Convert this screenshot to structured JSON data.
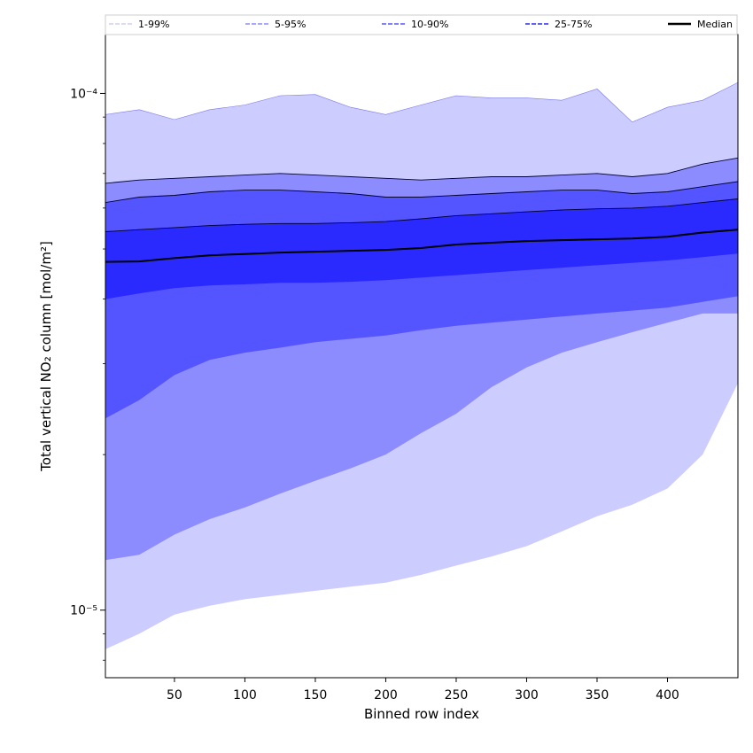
{
  "chart_data": {
    "type": "area",
    "title": "",
    "xlabel": "Binned row index",
    "ylabel": "Total vertical NO₂ column [mol/m²]",
    "xlim": [
      1,
      450
    ],
    "ylim": [
      7.4e-06,
      0.00013
    ],
    "yscale": "log",
    "grid": false,
    "legend_position": "top",
    "x_ticks": [
      50,
      100,
      150,
      200,
      250,
      300,
      350,
      400
    ],
    "x_tick_labels": [
      "50",
      "100",
      "150",
      "200",
      "250",
      "300",
      "350",
      "400"
    ],
    "y_ticks": [
      1e-05,
      0.0001
    ],
    "y_tick_labels": [
      "10⁻⁵",
      "10⁻⁴"
    ],
    "x": [
      1,
      25,
      50,
      75,
      100,
      125,
      150,
      175,
      200,
      225,
      250,
      275,
      300,
      325,
      350,
      375,
      400,
      425,
      450
    ],
    "series": [
      {
        "name": "1-99%",
        "color": "#ccccff",
        "line_color": "#7777ee",
        "lower": [
          8.4e-06,
          9e-06,
          9.8e-06,
          1.02e-05,
          1.05e-05,
          1.07e-05,
          1.09e-05,
          1.11e-05,
          1.13e-05,
          1.17e-05,
          1.22e-05,
          1.27e-05,
          1.33e-05,
          1.42e-05,
          1.52e-05,
          1.6e-05,
          1.72e-05,
          2e-05,
          2.75e-05
        ],
        "upper": [
          9.1e-05,
          9.3e-05,
          8.9e-05,
          9.3e-05,
          9.5e-05,
          9.9e-05,
          9.95e-05,
          9.4e-05,
          9.1e-05,
          9.5e-05,
          9.9e-05,
          9.8e-05,
          9.8e-05,
          9.7e-05,
          0.000102,
          8.8e-05,
          9.4e-05,
          9.7e-05,
          0.000105
        ]
      },
      {
        "name": "5-95%",
        "color": "#8c8cff",
        "line_color": "#000033",
        "lower": [
          1.25e-05,
          1.28e-05,
          1.4e-05,
          1.5e-05,
          1.58e-05,
          1.68e-05,
          1.78e-05,
          1.88e-05,
          2e-05,
          2.2e-05,
          2.4e-05,
          2.7e-05,
          2.95e-05,
          3.15e-05,
          3.3e-05,
          3.45e-05,
          3.6e-05,
          3.75e-05,
          3.75e-05
        ],
        "upper": [
          6.7e-05,
          6.8e-05,
          6.85e-05,
          6.9e-05,
          6.95e-05,
          7e-05,
          6.95e-05,
          6.9e-05,
          6.85e-05,
          6.8e-05,
          6.85e-05,
          6.9e-05,
          6.9e-05,
          6.95e-05,
          7e-05,
          6.9e-05,
          7e-05,
          7.3e-05,
          7.5e-05
        ]
      },
      {
        "name": "10-90%",
        "color": "#5555ff",
        "line_color": "#000033",
        "lower": [
          2.35e-05,
          2.55e-05,
          2.85e-05,
          3.05e-05,
          3.15e-05,
          3.22e-05,
          3.3e-05,
          3.35e-05,
          3.4e-05,
          3.48e-05,
          3.55e-05,
          3.6e-05,
          3.65e-05,
          3.7e-05,
          3.75e-05,
          3.8e-05,
          3.85e-05,
          3.95e-05,
          4.05e-05
        ],
        "upper": [
          6.15e-05,
          6.3e-05,
          6.35e-05,
          6.45e-05,
          6.5e-05,
          6.5e-05,
          6.45e-05,
          6.4e-05,
          6.3e-05,
          6.3e-05,
          6.35e-05,
          6.4e-05,
          6.45e-05,
          6.5e-05,
          6.5e-05,
          6.4e-05,
          6.45e-05,
          6.6e-05,
          6.75e-05
        ]
      },
      {
        "name": "25-75%",
        "color": "#2a2aff",
        "line_color": "#000033",
        "lower": [
          4e-05,
          4.1e-05,
          4.2e-05,
          4.25e-05,
          4.27e-05,
          4.3e-05,
          4.3e-05,
          4.32e-05,
          4.35e-05,
          4.4e-05,
          4.45e-05,
          4.5e-05,
          4.55e-05,
          4.6e-05,
          4.65e-05,
          4.7e-05,
          4.75e-05,
          4.82e-05,
          4.9e-05
        ],
        "upper": [
          5.4e-05,
          5.45e-05,
          5.5e-05,
          5.55e-05,
          5.58e-05,
          5.6e-05,
          5.6e-05,
          5.62e-05,
          5.65e-05,
          5.72e-05,
          5.8e-05,
          5.85e-05,
          5.9e-05,
          5.95e-05,
          5.98e-05,
          6e-05,
          6.05e-05,
          6.15e-05,
          6.25e-05
        ]
      }
    ],
    "median": {
      "name": "Median",
      "color": "#000000",
      "values": [
        4.72e-05,
        4.73e-05,
        4.8e-05,
        4.86e-05,
        4.89e-05,
        4.92e-05,
        4.94e-05,
        4.96e-05,
        4.98e-05,
        5.02e-05,
        5.1e-05,
        5.14e-05,
        5.18e-05,
        5.2e-05,
        5.22e-05,
        5.24e-05,
        5.28e-05,
        5.38e-05,
        5.45e-05
      ]
    }
  }
}
